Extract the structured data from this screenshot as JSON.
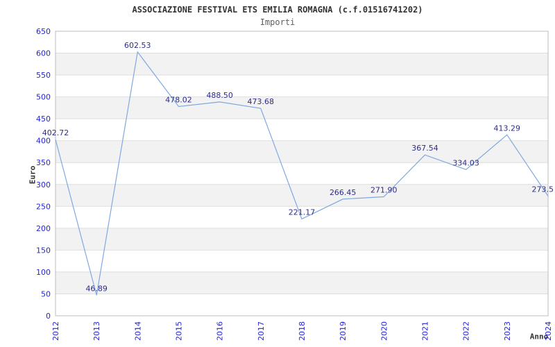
{
  "chart_data": {
    "type": "line",
    "title": "ASSOCIAZIONE FESTIVAL ETS EMILIA ROMAGNA (c.f.01516741202)",
    "subtitle": "Importi",
    "xlabel": "Anno",
    "ylabel": "Euro",
    "x": [
      "2012",
      "2013",
      "2014",
      "2015",
      "2016",
      "2017",
      "2018",
      "2019",
      "2020",
      "2021",
      "2022",
      "2023",
      "2024"
    ],
    "values": [
      402.72,
      46.89,
      602.53,
      478.02,
      488.5,
      473.68,
      221.17,
      266.45,
      271.9,
      367.54,
      334.03,
      413.29,
      273.5
    ],
    "point_labels": [
      "402.72",
      "46.89",
      "602.53",
      "478.02",
      "488.50",
      "473.68",
      "221.17",
      "266.45",
      "271.90",
      "367.54",
      "334.03",
      "413.29",
      "273.5"
    ],
    "ylim": [
      0,
      650
    ],
    "yticks": [
      0,
      50,
      100,
      150,
      200,
      250,
      300,
      350,
      400,
      450,
      500,
      550,
      600,
      650
    ],
    "grid": true,
    "alternating_bands": true,
    "legend_position": "none",
    "colors": {
      "line": "#7fa8e0",
      "tick_label": "#2525d0",
      "data_label": "#2d2d86",
      "band": "#f2f2f2",
      "grid": "#dedede",
      "border": "#bcbcbc",
      "title": "#333333",
      "subtitle": "#5f5f5f",
      "axis_label": "#333333"
    }
  }
}
